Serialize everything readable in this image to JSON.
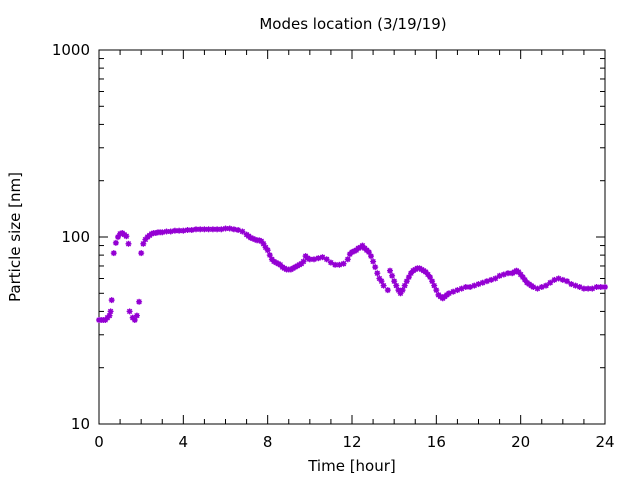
{
  "chart_data": {
    "type": "scatter",
    "title": "Modes location (3/19/19)",
    "xlabel": "Time [hour]",
    "ylabel": "Particle size [nm]",
    "xlim": [
      0,
      24
    ],
    "ylim": [
      10,
      1000
    ],
    "y_scale": "log",
    "x_ticks": [
      0,
      4,
      8,
      12,
      16,
      20,
      24
    ],
    "y_ticks": [
      10,
      100,
      1000
    ],
    "grid": false,
    "legend": "none",
    "marker_color": "#9400d3",
    "x": [
      0,
      0.1,
      0.2,
      0.3,
      0.4,
      0.5,
      0.55,
      0.6,
      0.7,
      0.8,
      0.9,
      1.0,
      1.1,
      1.2,
      1.3,
      1.4,
      1.45,
      1.6,
      1.7,
      1.8,
      1.9,
      2.0,
      2.1,
      2.2,
      2.3,
      2.4,
      2.5,
      2.6,
      2.7,
      2.8,
      2.9,
      3.0,
      3.2,
      3.4,
      3.6,
      3.8,
      4.0,
      4.2,
      4.4,
      4.6,
      4.8,
      5.0,
      5.2,
      5.4,
      5.6,
      5.8,
      6.0,
      6.2,
      6.4,
      6.6,
      6.8,
      7.0,
      7.1,
      7.2,
      7.3,
      7.4,
      7.5,
      7.6,
      7.7,
      7.8,
      7.9,
      8.0,
      8.1,
      8.2,
      8.3,
      8.4,
      8.5,
      8.6,
      8.7,
      8.8,
      8.9,
      9.0,
      9.1,
      9.2,
      9.3,
      9.4,
      9.5,
      9.6,
      9.7,
      9.8,
      9.9,
      10.0,
      10.2,
      10.4,
      10.6,
      10.8,
      11.0,
      11.2,
      11.4,
      11.6,
      11.8,
      11.9,
      12.0,
      12.1,
      12.2,
      12.3,
      12.4,
      12.5,
      12.6,
      12.7,
      12.8,
      12.9,
      13.0,
      13.1,
      13.2,
      13.3,
      13.4,
      13.5,
      13.7,
      13.8,
      13.9,
      14.0,
      14.1,
      14.2,
      14.3,
      14.4,
      14.5,
      14.6,
      14.7,
      14.8,
      14.9,
      15.0,
      15.1,
      15.2,
      15.3,
      15.4,
      15.5,
      15.6,
      15.7,
      15.8,
      15.9,
      16.0,
      16.1,
      16.2,
      16.3,
      16.4,
      16.5,
      16.6,
      16.8,
      17.0,
      17.2,
      17.4,
      17.6,
      17.8,
      18.0,
      18.2,
      18.4,
      18.6,
      18.8,
      19.0,
      19.2,
      19.4,
      19.6,
      19.7,
      19.8,
      19.9,
      20.0,
      20.1,
      20.2,
      20.3,
      20.4,
      20.5,
      20.6,
      20.8,
      21.0,
      21.2,
      21.4,
      21.6,
      21.8,
      22.0,
      22.2,
      22.4,
      22.6,
      22.8,
      23.0,
      23.2,
      23.4,
      23.6,
      23.8,
      24.0
    ],
    "y": [
      36,
      36,
      36,
      36,
      37,
      38,
      40,
      46,
      82,
      93,
      100,
      104,
      105,
      103,
      101,
      92,
      40,
      37,
      36,
      38,
      45,
      82,
      92,
      97,
      100,
      102,
      104,
      105,
      105,
      106,
      106,
      106,
      107,
      107,
      108,
      108,
      108,
      109,
      109,
      110,
      110,
      110,
      110,
      110,
      110,
      110,
      111,
      111,
      110,
      109,
      107,
      103,
      101,
      99,
      98,
      97,
      96,
      96,
      95,
      92,
      88,
      85,
      80,
      76,
      74,
      73,
      72,
      71,
      69,
      68,
      67,
      67,
      67,
      68,
      69,
      70,
      71,
      72,
      74,
      79,
      77,
      76,
      76,
      77,
      78,
      76,
      73,
      71,
      71,
      72,
      76,
      81,
      83,
      84,
      85,
      87,
      88,
      90,
      87,
      85,
      83,
      79,
      74,
      69,
      64,
      60,
      58,
      55,
      52,
      66,
      62,
      58,
      55,
      52,
      50,
      52,
      55,
      58,
      61,
      64,
      66,
      67,
      68,
      68,
      67,
      66,
      65,
      63,
      61,
      58,
      55,
      52,
      49,
      48,
      47,
      48,
      49,
      50,
      51,
      52,
      53,
      54,
      54,
      55,
      56,
      57,
      58,
      59,
      60,
      62,
      63,
      64,
      64,
      65,
      66,
      65,
      63,
      61,
      59,
      57,
      56,
      55,
      54,
      53,
      54,
      55,
      57,
      59,
      60,
      59,
      58,
      56,
      55,
      54,
      53,
      53,
      53,
      54,
      54,
      54
    ]
  }
}
